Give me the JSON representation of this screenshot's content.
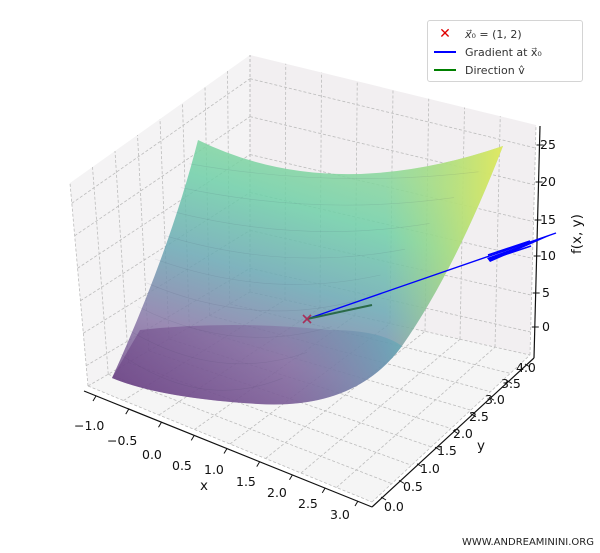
{
  "chart_data": {
    "type": "surface3d",
    "title": "",
    "function_hint": "f(x, y) = x^2 + y^2 style paraboloid surface (viridis colormap, alpha ~0.7)",
    "xlabel": "x",
    "ylabel": "y",
    "zlabel": "f(x, y)",
    "xlim": [
      -1.0,
      3.0
    ],
    "ylim": [
      0.0,
      4.0
    ],
    "zlim": [
      0,
      26
    ],
    "x_ticks": [
      "−1.0",
      "−0.5",
      "0.0",
      "0.5",
      "1.0",
      "1.5",
      "2.0",
      "2.5",
      "3.0"
    ],
    "y_ticks": [
      "0.0",
      "0.5",
      "1.0",
      "1.5",
      "2.0",
      "2.5",
      "3.0",
      "3.5",
      "4.0"
    ],
    "z_ticks": [
      "0",
      "5",
      "10",
      "15",
      "20",
      "25"
    ],
    "grid": true,
    "colormap": "viridis",
    "point": {
      "label": "x0 = (1, 2)",
      "x": 1,
      "y": 2,
      "z": 5,
      "marker": "x",
      "color": "#e00000"
    },
    "series": [
      {
        "name": "Gradient at x0",
        "type": "quiver",
        "color": "#0000ff",
        "from": [
          1,
          2,
          5
        ],
        "direction": "gradient"
      },
      {
        "name": "Direction v̂",
        "type": "quiver",
        "color": "#008000",
        "from": [
          1,
          2,
          5
        ],
        "direction": "unit vector v"
      }
    ],
    "legend": {
      "position": "upper right",
      "entries": [
        {
          "label": "x⃗₀ = (1, 2)",
          "marker": "x",
          "color": "#e00000"
        },
        {
          "label": "Gradient at x⃗₀",
          "marker": "line",
          "color": "#0000ff"
        },
        {
          "label": "Direction v̂",
          "marker": "line",
          "color": "#008000"
        }
      ]
    }
  },
  "legend": {
    "point_label_main": "x⃗",
    "point_label_rest": "₀ = (1, 2)",
    "gradient_label": "Gradient at x⃗₀",
    "direction_label": "Direction v̂"
  },
  "colors": {
    "pane_wall": "#f2eff1",
    "pane_floor": "#f5f5f5",
    "grid": "#b8b8b8",
    "gradient": "#0000ff",
    "direction": "#2a7a4a",
    "marker": "#b03060"
  },
  "watermark": "WWW.ANDREAMININI.ORG"
}
